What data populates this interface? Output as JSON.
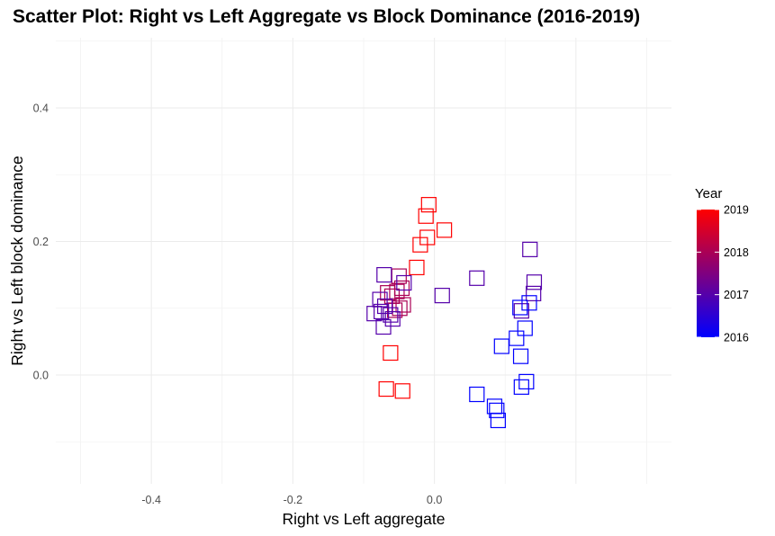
{
  "chart_data": {
    "type": "scatter",
    "title": "Scatter Plot: Right vs Left Aggregate vs Block Dominance (2016-2019)",
    "xlabel": "Right vs Left aggregate",
    "ylabel": "Right vs Left block dominance",
    "xlim": [
      -0.535,
      0.335
    ],
    "ylim": [
      -0.163,
      0.505
    ],
    "x_ticks": [
      -0.4,
      -0.2,
      0.0
    ],
    "x_tick_labels": [
      "-0.4",
      "-0.2",
      "0.0"
    ],
    "y_ticks": [
      0.0,
      0.2,
      0.4
    ],
    "y_tick_labels": [
      "0.0",
      "0.2",
      "0.4"
    ],
    "grid": true,
    "marker": "open-square",
    "legend": {
      "title": "Year",
      "position": "right",
      "type": "colorbar",
      "range": [
        2016,
        2019
      ],
      "ticks": [
        2016,
        2017,
        2018,
        2019
      ],
      "tick_labels": [
        "2016",
        "2017",
        "2018",
        "2019"
      ],
      "color_low": "#0000ff",
      "color_high": "#ff0000"
    },
    "points": [
      {
        "x": -0.008,
        "y": 0.255,
        "year": 2019
      },
      {
        "x": -0.012,
        "y": 0.238,
        "year": 2019
      },
      {
        "x": 0.014,
        "y": 0.217,
        "year": 2019
      },
      {
        "x": -0.01,
        "y": 0.206,
        "year": 2019
      },
      {
        "x": -0.02,
        "y": 0.195,
        "year": 2019
      },
      {
        "x": -0.025,
        "y": 0.161,
        "year": 2019
      },
      {
        "x": -0.062,
        "y": 0.033,
        "year": 2019
      },
      {
        "x": -0.068,
        "y": -0.021,
        "year": 2019
      },
      {
        "x": -0.045,
        "y": -0.024,
        "year": 2019
      },
      {
        "x": -0.05,
        "y": 0.148,
        "year": 2018
      },
      {
        "x": -0.046,
        "y": 0.13,
        "year": 2018
      },
      {
        "x": -0.053,
        "y": 0.125,
        "year": 2018
      },
      {
        "x": -0.06,
        "y": 0.118,
        "year": 2018
      },
      {
        "x": -0.066,
        "y": 0.123,
        "year": 2018
      },
      {
        "x": -0.044,
        "y": 0.105,
        "year": 2018
      },
      {
        "x": -0.049,
        "y": 0.1,
        "year": 2018
      },
      {
        "x": -0.056,
        "y": 0.097,
        "year": 2018
      },
      {
        "x": -0.071,
        "y": 0.15,
        "year": 2017
      },
      {
        "x": -0.077,
        "y": 0.113,
        "year": 2017
      },
      {
        "x": -0.07,
        "y": 0.103,
        "year": 2017
      },
      {
        "x": -0.075,
        "y": 0.095,
        "year": 2017
      },
      {
        "x": -0.085,
        "y": 0.092,
        "year": 2017
      },
      {
        "x": -0.062,
        "y": 0.09,
        "year": 2017
      },
      {
        "x": -0.059,
        "y": 0.084,
        "year": 2017
      },
      {
        "x": -0.072,
        "y": 0.072,
        "year": 2017
      },
      {
        "x": -0.043,
        "y": 0.138,
        "year": 2017
      },
      {
        "x": 0.011,
        "y": 0.119,
        "year": 2017
      },
      {
        "x": 0.06,
        "y": 0.145,
        "year": 2017
      },
      {
        "x": 0.135,
        "y": 0.188,
        "year": 2017
      },
      {
        "x": 0.141,
        "y": 0.139,
        "year": 2017
      },
      {
        "x": 0.14,
        "y": 0.122,
        "year": 2017
      },
      {
        "x": 0.123,
        "y": 0.096,
        "year": 2017
      },
      {
        "x": 0.134,
        "y": 0.108,
        "year": 2016
      },
      {
        "x": 0.121,
        "y": 0.101,
        "year": 2016
      },
      {
        "x": 0.128,
        "y": 0.07,
        "year": 2016
      },
      {
        "x": 0.116,
        "y": 0.055,
        "year": 2016
      },
      {
        "x": 0.095,
        "y": 0.043,
        "year": 2016
      },
      {
        "x": 0.122,
        "y": 0.028,
        "year": 2016
      },
      {
        "x": 0.13,
        "y": -0.01,
        "year": 2016
      },
      {
        "x": 0.123,
        "y": -0.018,
        "year": 2016
      },
      {
        "x": 0.06,
        "y": -0.029,
        "year": 2016
      },
      {
        "x": 0.085,
        "y": -0.047,
        "year": 2016
      },
      {
        "x": 0.088,
        "y": -0.053,
        "year": 2016
      },
      {
        "x": 0.09,
        "y": -0.068,
        "year": 2016
      }
    ]
  }
}
